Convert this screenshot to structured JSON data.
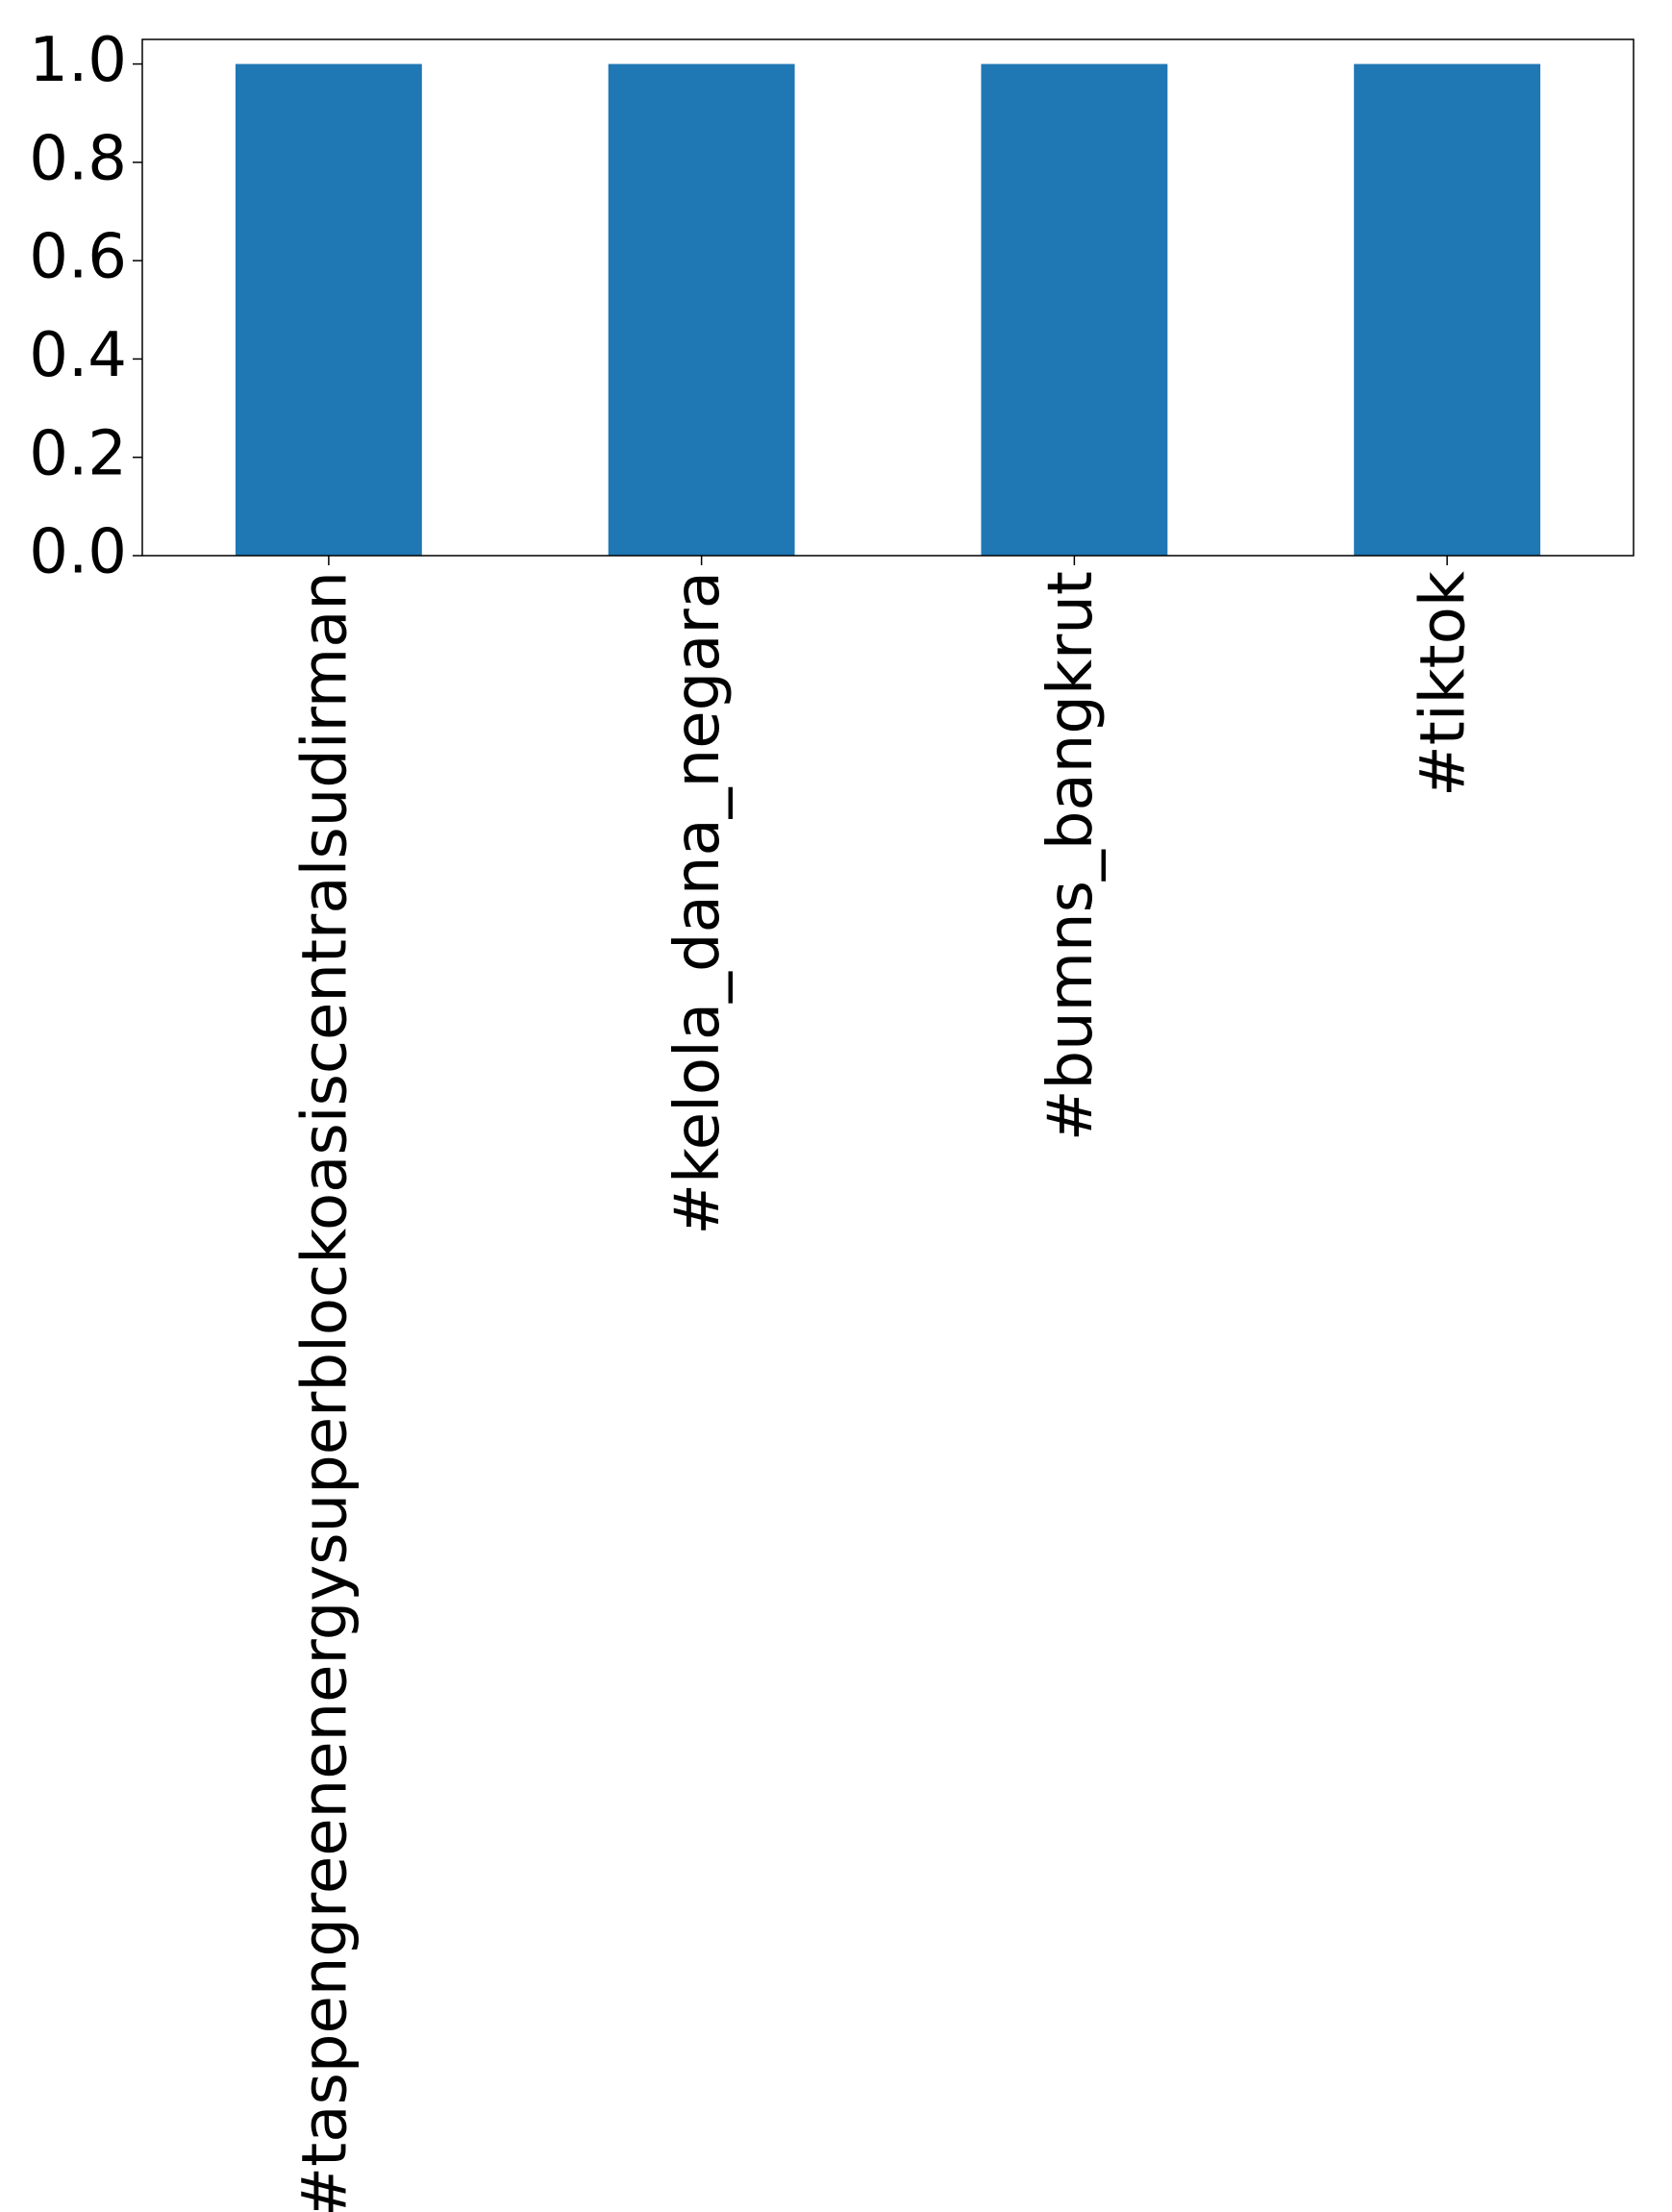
{
  "chart_data": {
    "type": "bar",
    "categories": [
      "#taspengreenenergysuperblockoasiscentralsudirman",
      "#kelola_dana_negara",
      "#bumns_bangkrut",
      "#tiktok"
    ],
    "values": [
      1,
      1,
      1,
      1
    ],
    "color": "#1f77b4",
    "ylim": [
      0,
      1.05
    ],
    "yticks": [
      {
        "value": 0,
        "label": "0.0"
      },
      {
        "value": 0.2,
        "label": "0.2"
      },
      {
        "value": 0.4,
        "label": "0.4"
      },
      {
        "value": 0.6,
        "label": "0.6"
      },
      {
        "value": 0.8,
        "label": "0.8"
      },
      {
        "value": 1,
        "label": "1.0"
      }
    ],
    "grid": false
  }
}
